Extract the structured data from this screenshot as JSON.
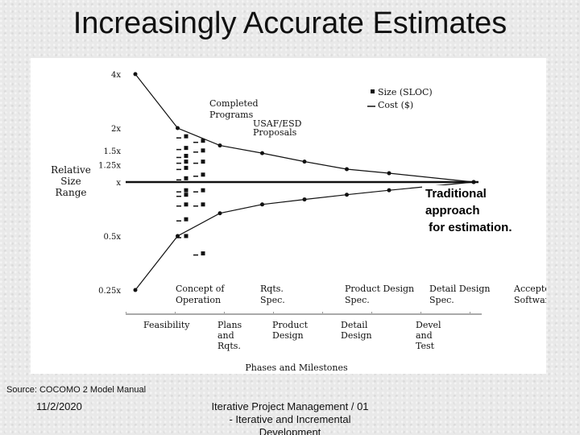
{
  "slide": {
    "title": "Increasingly Accurate Estimates",
    "source": "Source: COCOMO 2 Model Manual",
    "date": "11/2/2020",
    "footer_line1": "Iterative Project Management / 01",
    "footer_line2": "- Iterative and Incremental",
    "footer_line3": "Development",
    "callout_line1": "Traditional approach",
    "callout_line2": " for estimation."
  },
  "chart_data": {
    "type": "line",
    "ylabel_lines": [
      "Relative",
      "Size",
      "Range"
    ],
    "xlabel": "Phases and Milestones",
    "y_ticks": [
      "4x",
      "2x",
      "1.5x",
      "1.25x",
      "x",
      "0.5x",
      "0.25x"
    ],
    "y_scale": "log",
    "milestones": [
      "Concept of Operation",
      "Rqts. Spec.",
      "Product Design Spec.",
      "Detail Design Spec.",
      "Accepted Software"
    ],
    "phases": [
      "Feasibility",
      "Plans and Rqts.",
      "Product Design",
      "Detail Design",
      "Devel and Test"
    ],
    "legend": [
      "Size (SLOC)",
      "Cost ($)"
    ],
    "annotations": [
      "Completed Programs",
      "USAF/ESD Proposals"
    ],
    "series": [
      {
        "name": "Size (SLOC)",
        "role": "upper",
        "x": [
          0.0,
          0.5,
          1.0,
          1.5,
          2.0,
          2.5,
          3.0,
          4.0
        ],
        "values": [
          4.0,
          2.0,
          1.6,
          1.45,
          1.3,
          1.18,
          1.12,
          1.0
        ]
      },
      {
        "name": "Cost ($)",
        "role": "lower",
        "x": [
          0.0,
          0.5,
          1.0,
          1.5,
          2.0,
          2.5,
          3.0,
          4.0
        ],
        "values": [
          0.25,
          0.5,
          0.67,
          0.75,
          0.8,
          0.85,
          0.9,
          1.0
        ]
      }
    ],
    "scatter": [
      {
        "x": 0.6,
        "values": [
          1.8,
          1.55,
          1.4,
          1.3,
          1.2,
          1.05,
          0.9,
          0.85,
          0.75,
          0.62,
          0.5
        ]
      },
      {
        "x": 0.8,
        "values": [
          1.7,
          1.5,
          1.3,
          1.1,
          0.9,
          0.75,
          0.4
        ]
      }
    ]
  }
}
